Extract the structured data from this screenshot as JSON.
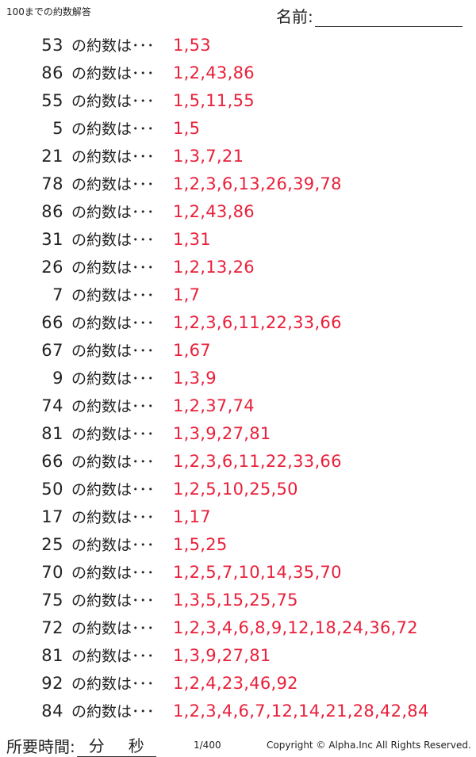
{
  "header": {
    "title": "100までの約数解答",
    "name_label": "名前:"
  },
  "row_label": "の約数は･･･",
  "rows": [
    {
      "n": "53",
      "a": "1,53"
    },
    {
      "n": "86",
      "a": "1,2,43,86"
    },
    {
      "n": "55",
      "a": "1,5,11,55"
    },
    {
      "n": "5",
      "a": "1,5"
    },
    {
      "n": "21",
      "a": "1,3,7,21"
    },
    {
      "n": "78",
      "a": "1,2,3,6,13,26,39,78"
    },
    {
      "n": "86",
      "a": "1,2,43,86"
    },
    {
      "n": "31",
      "a": "1,31"
    },
    {
      "n": "26",
      "a": "1,2,13,26"
    },
    {
      "n": "7",
      "a": "1,7"
    },
    {
      "n": "66",
      "a": "1,2,3,6,11,22,33,66"
    },
    {
      "n": "67",
      "a": "1,67"
    },
    {
      "n": "9",
      "a": "1,3,9"
    },
    {
      "n": "74",
      "a": "1,2,37,74"
    },
    {
      "n": "81",
      "a": "1,3,9,27,81"
    },
    {
      "n": "66",
      "a": "1,2,3,6,11,22,33,66"
    },
    {
      "n": "50",
      "a": "1,2,5,10,25,50"
    },
    {
      "n": "17",
      "a": "1,17"
    },
    {
      "n": "25",
      "a": "1,5,25"
    },
    {
      "n": "70",
      "a": "1,2,5,7,10,14,35,70"
    },
    {
      "n": "75",
      "a": "1,3,5,15,25,75"
    },
    {
      "n": "72",
      "a": "1,2,3,4,6,8,9,12,18,24,36,72"
    },
    {
      "n": "81",
      "a": "1,3,9,27,81"
    },
    {
      "n": "92",
      "a": "1,2,4,23,46,92"
    },
    {
      "n": "84",
      "a": "1,2,3,4,6,7,12,14,21,28,42,84"
    }
  ],
  "footer": {
    "time_label": "所要時間:",
    "minutes": "分",
    "seconds": "秒",
    "page": "1/400",
    "copyright": "Copyright ©  Alpha.Inc All Rights Reserved."
  },
  "colors": {
    "answer": "#e8203a"
  }
}
